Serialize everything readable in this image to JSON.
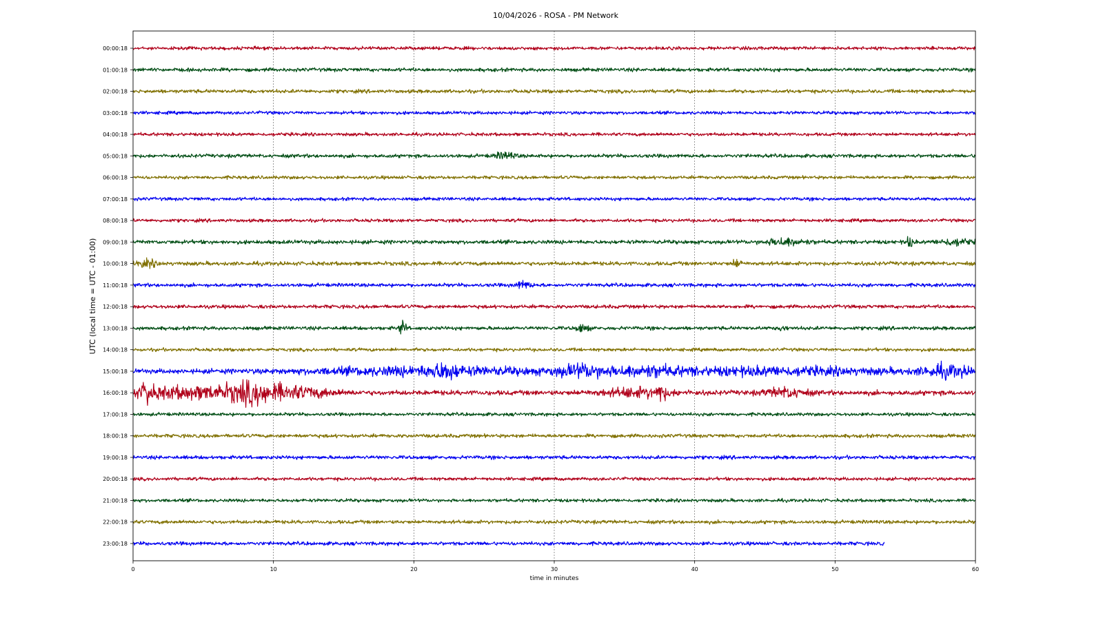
{
  "chart_data": {
    "type": "line",
    "title": "10/04/2026 - ROSA - PM Network",
    "xlabel": "time in minutes",
    "ylabel": "UTC (local time = UTC - 01:00)",
    "xlim": [
      0,
      60
    ],
    "x_ticks": [
      "0",
      "10",
      "20",
      "30",
      "40",
      "50",
      "60"
    ],
    "grid_x": true,
    "grid_y": false,
    "trace_colors": [
      "#b0001a",
      "#004d14",
      "#807000",
      "#0000f0"
    ],
    "rows": [
      {
        "label": "00:00:18",
        "end_minute": 60,
        "noise": 1.0,
        "events": []
      },
      {
        "label": "01:00:18",
        "end_minute": 60,
        "noise": 1.1,
        "events": []
      },
      {
        "label": "02:00:18",
        "end_minute": 60,
        "noise": 1.1,
        "events": []
      },
      {
        "label": "03:00:18",
        "end_minute": 60,
        "noise": 1.0,
        "events": []
      },
      {
        "label": "04:00:18",
        "end_minute": 60,
        "noise": 1.0,
        "events": []
      },
      {
        "label": "05:00:18",
        "end_minute": 60,
        "noise": 1.1,
        "events": [
          {
            "t": 26.5,
            "w": 1.0,
            "a": 1.8
          }
        ]
      },
      {
        "label": "06:00:18",
        "end_minute": 60,
        "noise": 1.0,
        "events": []
      },
      {
        "label": "07:00:18",
        "end_minute": 60,
        "noise": 1.0,
        "events": []
      },
      {
        "label": "08:00:18",
        "end_minute": 60,
        "noise": 1.0,
        "events": []
      },
      {
        "label": "09:00:18",
        "end_minute": 60,
        "noise": 1.2,
        "events": [
          {
            "t": 46.5,
            "w": 2.0,
            "a": 2.0
          },
          {
            "t": 55.3,
            "w": 0.3,
            "a": 3.5
          },
          {
            "t": 58.5,
            "w": 1.5,
            "a": 1.8
          }
        ]
      },
      {
        "label": "10:00:18",
        "end_minute": 60,
        "noise": 1.2,
        "events": [
          {
            "t": 1.0,
            "w": 1.0,
            "a": 1.8
          },
          {
            "t": 43.0,
            "w": 0.4,
            "a": 2.5
          }
        ]
      },
      {
        "label": "11:00:18",
        "end_minute": 60,
        "noise": 1.1,
        "events": [
          {
            "t": 27.8,
            "w": 0.8,
            "a": 2.0
          }
        ]
      },
      {
        "label": "12:00:18",
        "end_minute": 60,
        "noise": 1.1,
        "events": []
      },
      {
        "label": "13:00:18",
        "end_minute": 60,
        "noise": 1.1,
        "events": [
          {
            "t": 19.2,
            "w": 0.3,
            "a": 5.0
          },
          {
            "t": 32.0,
            "w": 0.6,
            "a": 2.2
          },
          {
            "t": 46.3,
            "w": 0.3,
            "a": 2.2
          }
        ]
      },
      {
        "label": "14:00:18",
        "end_minute": 60,
        "noise": 1.0,
        "events": []
      },
      {
        "label": "15:00:18",
        "end_minute": 60,
        "noise": 1.4,
        "events": [
          {
            "t": 21.0,
            "w": 12.0,
            "a": 2.2
          },
          {
            "t": 22.2,
            "w": 1.2,
            "a": 3.0
          },
          {
            "t": 32.0,
            "w": 2.5,
            "a": 3.0
          },
          {
            "t": 36.5,
            "w": 3.0,
            "a": 2.2
          },
          {
            "t": 45.0,
            "w": 14.0,
            "a": 2.0
          },
          {
            "t": 58.0,
            "w": 2.5,
            "a": 3.0
          }
        ]
      },
      {
        "label": "16:00:18",
        "end_minute": 60,
        "noise": 1.5,
        "events": [
          {
            "t": 1.0,
            "w": 0.4,
            "a": 7.0
          },
          {
            "t": 4.0,
            "w": 7.0,
            "a": 3.2
          },
          {
            "t": 8.4,
            "w": 2.5,
            "a": 4.5
          },
          {
            "t": 11.5,
            "w": 3.5,
            "a": 3.0
          },
          {
            "t": 36.0,
            "w": 3.5,
            "a": 2.4
          },
          {
            "t": 37.6,
            "w": 0.4,
            "a": 4.5
          },
          {
            "t": 46.5,
            "w": 2.0,
            "a": 2.5
          }
        ]
      },
      {
        "label": "17:00:18",
        "end_minute": 60,
        "noise": 1.0,
        "events": []
      },
      {
        "label": "18:00:18",
        "end_minute": 60,
        "noise": 1.1,
        "events": []
      },
      {
        "label": "19:00:18",
        "end_minute": 60,
        "noise": 1.1,
        "events": []
      },
      {
        "label": "20:00:18",
        "end_minute": 60,
        "noise": 1.0,
        "events": []
      },
      {
        "label": "21:00:18",
        "end_minute": 60,
        "noise": 1.0,
        "events": []
      },
      {
        "label": "22:00:18",
        "end_minute": 60,
        "noise": 1.1,
        "events": []
      },
      {
        "label": "23:00:18",
        "end_minute": 53.5,
        "noise": 1.1,
        "events": []
      }
    ]
  }
}
